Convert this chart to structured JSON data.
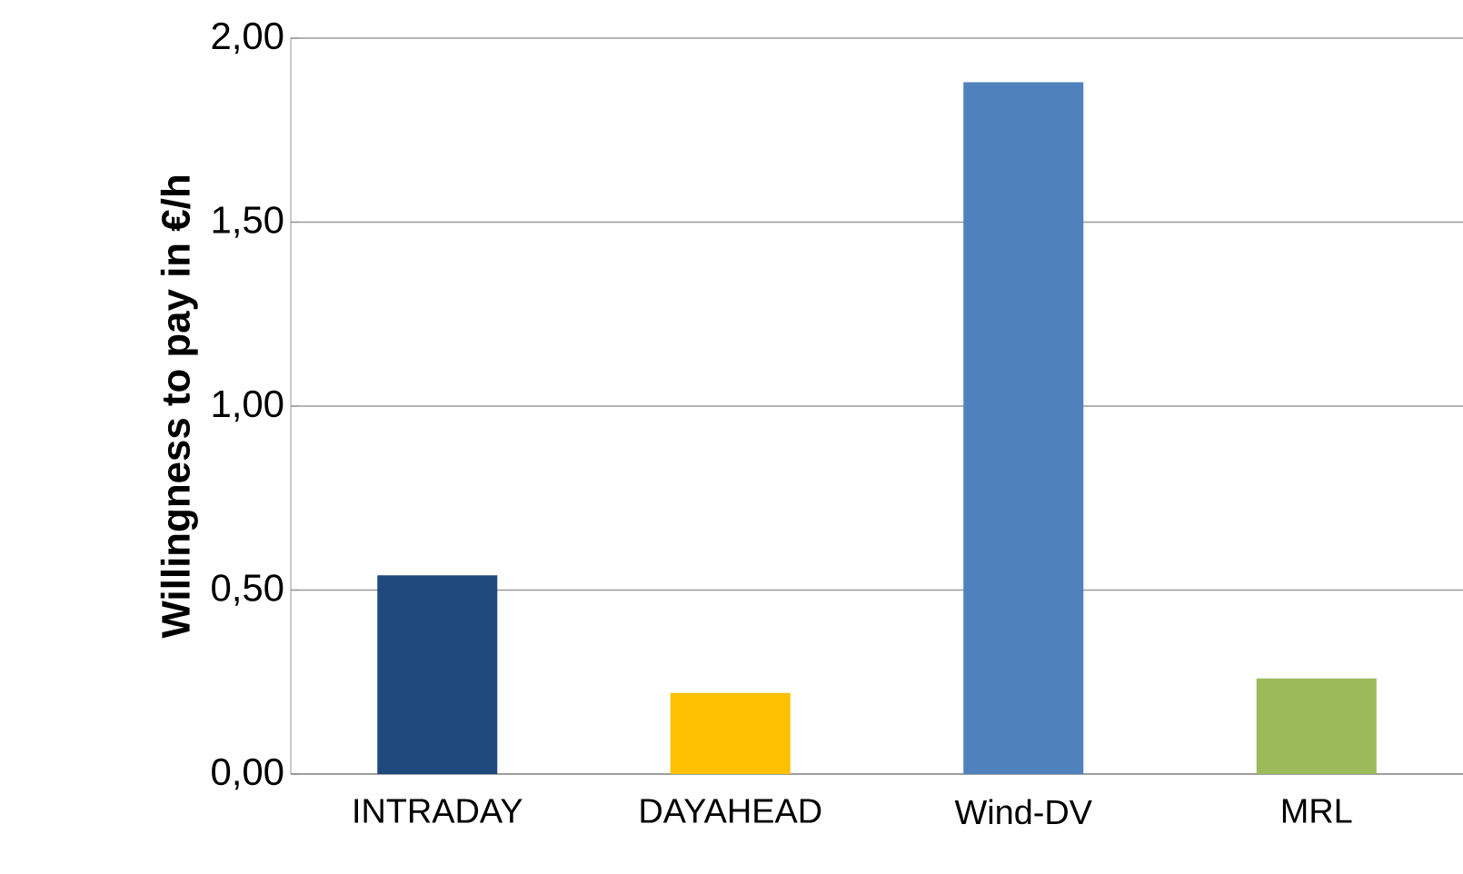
{
  "chart_data": {
    "type": "bar",
    "ylabel": "Willingness to pay in €/h",
    "categories": [
      "INTRADAY",
      "DAYAHEAD",
      "Wind-DV",
      "MRL"
    ],
    "values": [
      0.54,
      0.22,
      1.88,
      0.26
    ],
    "colors": [
      "#1f497d",
      "#ffc000",
      "#4f81bd",
      "#9bbb59"
    ],
    "ylim": [
      0,
      2
    ],
    "yticks": [
      {
        "value": 0,
        "label": "0,00"
      },
      {
        "value": 0.5,
        "label": "0,50"
      },
      {
        "value": 1,
        "label": "1,00"
      },
      {
        "value": 1.5,
        "label": "1,50"
      },
      {
        "value": 2,
        "label": "2,00"
      }
    ],
    "grid": "y"
  }
}
